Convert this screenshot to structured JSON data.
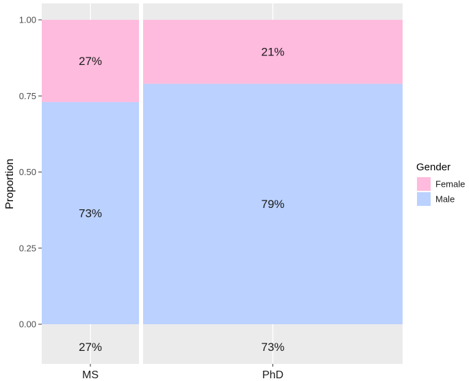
{
  "chart_data": {
    "type": "bar",
    "subtype": "stacked-proportion-mosaic",
    "title": "",
    "xlabel": "",
    "ylabel": "Proportion",
    "ylim": [
      0,
      1
    ],
    "yticks": [
      "0.00",
      "0.25",
      "0.50",
      "0.75",
      "1.00"
    ],
    "grid": true,
    "legend_position": "right",
    "legend_title": "Gender",
    "categories": [
      "MS",
      "PhD"
    ],
    "category_weights": [
      0.27,
      0.73
    ],
    "category_weight_labels": [
      "27%",
      "73%"
    ],
    "series": [
      {
        "name": "Female",
        "color": "#ffbbdd",
        "values": [
          0.27,
          0.21
        ],
        "labels": [
          "27%",
          "21%"
        ]
      },
      {
        "name": "Male",
        "color": "#bbd1ff",
        "values": [
          0.73,
          0.79
        ],
        "labels": [
          "73%",
          "79%"
        ]
      }
    ]
  }
}
